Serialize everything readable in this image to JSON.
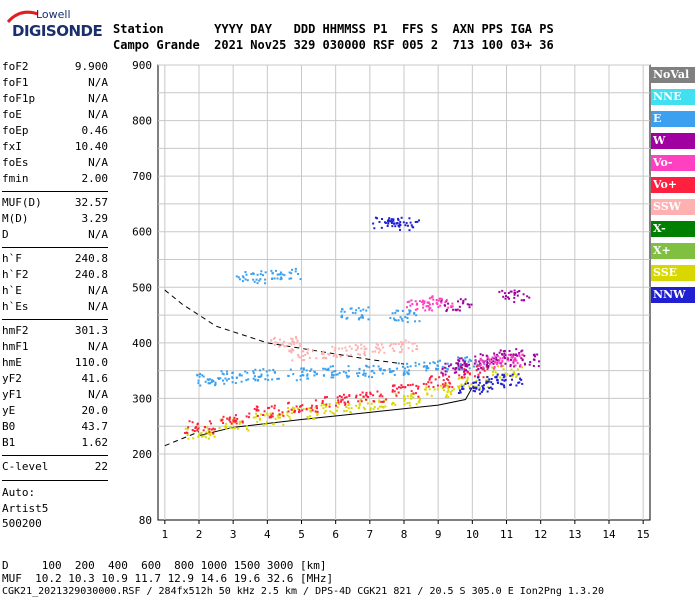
{
  "logo": {
    "line1": "Lowell",
    "line2": "DIGISONDE"
  },
  "header": {
    "labels_line": "Station       YYYY DAY   DDD HHMMSS P1  FFS S  AXN PPS IGA PS",
    "values_line": "Campo Grande  2021 Nov25 329 030000 RSF 005 2  713 100 03+ 36"
  },
  "params": [
    {
      "k": "foF2",
      "v": "9.900"
    },
    {
      "k": "foF1",
      "v": "N/A"
    },
    {
      "k": "foF1p",
      "v": "N/A"
    },
    {
      "k": "foE",
      "v": "N/A"
    },
    {
      "k": "foEp",
      "v": "0.46"
    },
    {
      "k": "fxI",
      "v": "10.40"
    },
    {
      "k": "foEs",
      "v": "N/A"
    },
    {
      "k": "fmin",
      "v": "2.00"
    },
    {
      "k": "MUF(D)",
      "v": "32.57"
    },
    {
      "k": "M(D)",
      "v": "3.29"
    },
    {
      "k": "D",
      "v": "N/A"
    },
    {
      "k": "h`F",
      "v": "240.8"
    },
    {
      "k": "h`F2",
      "v": "240.8"
    },
    {
      "k": "h`E",
      "v": "N/A"
    },
    {
      "k": "h`Es",
      "v": "N/A"
    },
    {
      "k": "hmF2",
      "v": "301.3"
    },
    {
      "k": "hmF1",
      "v": "N/A"
    },
    {
      "k": "hmE",
      "v": "110.0"
    },
    {
      "k": "yF2",
      "v": "41.6"
    },
    {
      "k": "yF1",
      "v": "N/A"
    },
    {
      "k": "yE",
      "v": "20.0"
    },
    {
      "k": "B0",
      "v": "43.7"
    },
    {
      "k": "B1",
      "v": "1.62"
    },
    {
      "k": "C-level",
      "v": "22"
    }
  ],
  "auto": {
    "line1": "Auto:",
    "line2": "Artist5",
    "line3": "500200"
  },
  "legend": [
    {
      "label": "NoVal",
      "color": "#808080"
    },
    {
      "label": "NNE",
      "color": "#40e0f0"
    },
    {
      "label": "E",
      "color": "#3aa0ef"
    },
    {
      "label": "W",
      "color": "#a000a0"
    },
    {
      "label": "Vo-",
      "color": "#ff40c0"
    },
    {
      "label": "Vo+",
      "color": "#ff2040"
    },
    {
      "label": "SSW",
      "color": "#ffb0b0"
    },
    {
      "label": "X-",
      "color": "#008000"
    },
    {
      "label": "X+",
      "color": "#80c040"
    },
    {
      "label": "SSE",
      "color": "#d8d800"
    },
    {
      "label": "NNW",
      "color": "#2020d0"
    }
  ],
  "bottom": {
    "d_line": "D     100  200  400  600  800 1000 1500 3000 [km]",
    "muf_line": "MUF  10.2 10.3 10.9 11.7 12.9 14.6 19.6 32.6 [MHz]",
    "file_line": "CGK21_2021329030000.RSF / 284fx512h 50 kHz 2.5 km / DPS-4D CGK21 821 / 20.5 S 305.0 E Ion2Png 1.3.20"
  },
  "chart_data": {
    "type": "scatter",
    "x_ticks": [
      "1",
      "2",
      "3",
      "4",
      "5",
      "6",
      "7",
      "8",
      "9",
      "10",
      "11",
      "12",
      "13",
      "14",
      "15"
    ],
    "y_ticks": [
      "80",
      "200",
      "300",
      "400",
      "500",
      "600",
      "700",
      "800",
      "900"
    ],
    "xlim": [
      0.8,
      15.2
    ],
    "ylim": [
      80,
      900
    ],
    "grid": true,
    "legend_placement": "right",
    "series": [
      {
        "color_key": "E",
        "points": [
          [
            2.3,
            335
          ],
          [
            3.0,
            340
          ],
          [
            4.0,
            345
          ],
          [
            5.0,
            345
          ],
          [
            6.0,
            350
          ],
          [
            7.0,
            350
          ],
          [
            8.0,
            355
          ],
          [
            9.0,
            360
          ],
          [
            10.0,
            365
          ],
          [
            3.5,
            520
          ],
          [
            4.5,
            525
          ],
          [
            6.5,
            455
          ],
          [
            8.0,
            450
          ]
        ]
      },
      {
        "color_key": "SSE",
        "points": [
          [
            2.0,
            240
          ],
          [
            3.0,
            255
          ],
          [
            4.0,
            265
          ],
          [
            5.0,
            275
          ],
          [
            6.0,
            285
          ],
          [
            7.0,
            292
          ],
          [
            8.0,
            300
          ],
          [
            9.0,
            315
          ],
          [
            10.0,
            330
          ],
          [
            11.0,
            350
          ]
        ]
      },
      {
        "color_key": "Vo+",
        "points": [
          [
            2.0,
            250
          ],
          [
            3.0,
            265
          ],
          [
            4.0,
            278
          ],
          [
            5.0,
            288
          ],
          [
            6.0,
            298
          ],
          [
            7.0,
            306
          ],
          [
            8.0,
            316
          ],
          [
            9.0,
            332
          ],
          [
            10.0,
            350
          ]
        ]
      },
      {
        "color_key": "W",
        "points": [
          [
            9.5,
            355
          ],
          [
            10.0,
            365
          ],
          [
            10.5,
            375
          ],
          [
            11.0,
            380
          ],
          [
            11.5,
            370
          ],
          [
            9.5,
            470
          ],
          [
            11.2,
            485
          ]
        ]
      },
      {
        "color_key": "NNW",
        "points": [
          [
            8.0,
            615
          ],
          [
            10.0,
            320
          ],
          [
            10.5,
            330
          ],
          [
            11.0,
            335
          ],
          [
            7.5,
            618
          ]
        ]
      },
      {
        "color_key": "SSW",
        "points": [
          [
            5.0,
            380
          ],
          [
            6.0,
            385
          ],
          [
            7.0,
            390
          ],
          [
            8.0,
            395
          ],
          [
            4.5,
            405
          ]
        ]
      },
      {
        "color_key": "Vo-",
        "points": [
          [
            10.5,
            365
          ],
          [
            11.0,
            370
          ],
          [
            8.5,
            470
          ],
          [
            9.0,
            475
          ]
        ]
      }
    ]
  }
}
